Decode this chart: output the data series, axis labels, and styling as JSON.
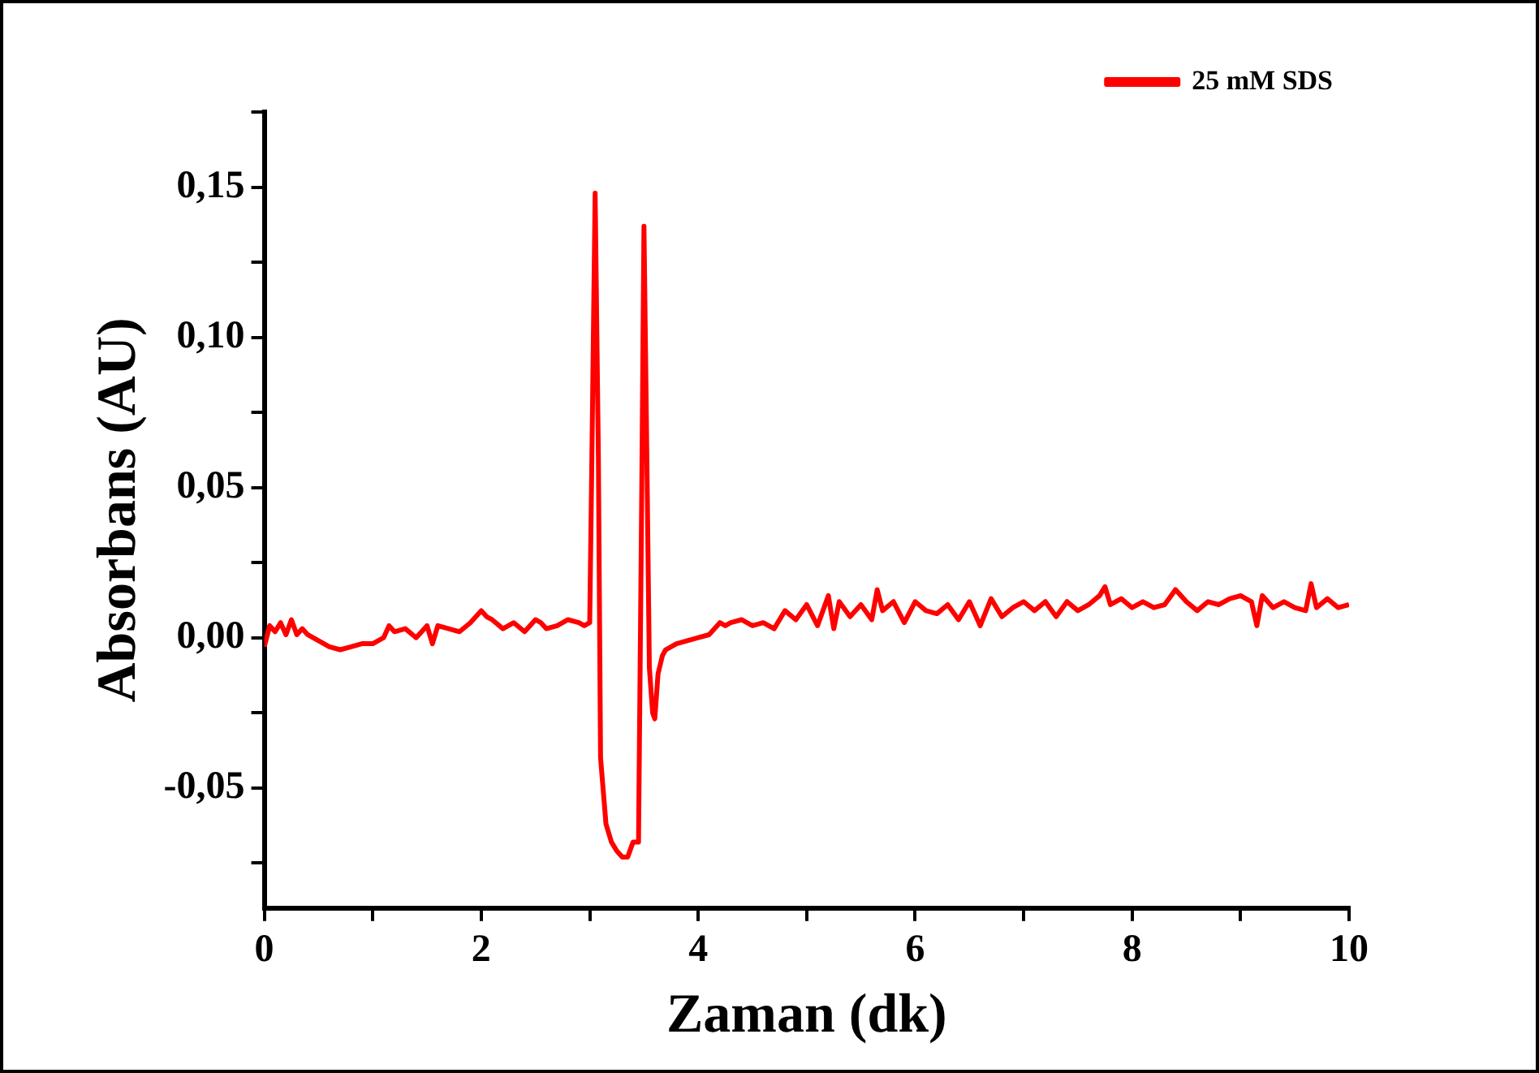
{
  "chart_data": {
    "type": "line",
    "xlabel": "Zaman (dk)",
    "ylabel": "Absorbans (AU)",
    "xlim": [
      0,
      10
    ],
    "ylim": [
      -0.09,
      0.175
    ],
    "xticks": [
      0,
      {
        "value": 1,
        "label": null
      },
      2,
      {
        "value": 3,
        "label": null
      },
      4,
      {
        "value": 5,
        "label": null
      },
      6,
      {
        "value": 7,
        "label": null
      },
      8,
      {
        "value": 9,
        "label": null
      },
      10
    ],
    "yticks": [
      {
        "value": -0.075,
        "label": null
      },
      {
        "value": -0.05,
        "label": "-0,05"
      },
      {
        "value": -0.025,
        "label": null
      },
      {
        "value": 0,
        "label": "0,00"
      },
      {
        "value": 0.025,
        "label": null
      },
      {
        "value": 0.05,
        "label": "0,05"
      },
      {
        "value": 0.075,
        "label": null
      },
      {
        "value": 0.1,
        "label": "0,10"
      },
      {
        "value": 0.125,
        "label": null
      },
      {
        "value": 0.15,
        "label": "0,15"
      },
      {
        "value": 0.175,
        "label": null
      }
    ],
    "grid": false,
    "legend": "top right",
    "marker": "none",
    "line_style": "solid",
    "series": [
      {
        "name": "25 mM SDS",
        "color": "#ff0000",
        "x": [
          0,
          0.05,
          0.1,
          0.15,
          0.2,
          0.25,
          0.3,
          0.35,
          0.4,
          0.45,
          0.5,
          0.6,
          0.7,
          0.8,
          0.9,
          1.0,
          1.1,
          1.15,
          1.2,
          1.3,
          1.4,
          1.5,
          1.55,
          1.6,
          1.7,
          1.8,
          1.9,
          2.0,
          2.05,
          2.1,
          2.2,
          2.3,
          2.4,
          2.5,
          2.55,
          2.6,
          2.7,
          2.8,
          2.9,
          2.95,
          3.0,
          3.02,
          3.05,
          3.08,
          3.1,
          3.15,
          3.2,
          3.25,
          3.3,
          3.35,
          3.4,
          3.45,
          3.48,
          3.5,
          3.52,
          3.55,
          3.58,
          3.6,
          3.63,
          3.67,
          3.7,
          3.8,
          3.9,
          4.0,
          4.1,
          4.2,
          4.25,
          4.3,
          4.4,
          4.5,
          4.6,
          4.7,
          4.8,
          4.9,
          5.0,
          5.1,
          5.2,
          5.25,
          5.3,
          5.4,
          5.5,
          5.6,
          5.65,
          5.7,
          5.8,
          5.9,
          6.0,
          6.1,
          6.2,
          6.3,
          6.4,
          6.5,
          6.6,
          6.7,
          6.8,
          6.9,
          7.0,
          7.1,
          7.2,
          7.3,
          7.4,
          7.5,
          7.6,
          7.7,
          7.75,
          7.8,
          7.9,
          8.0,
          8.1,
          8.2,
          8.3,
          8.4,
          8.5,
          8.6,
          8.7,
          8.8,
          8.9,
          9.0,
          9.1,
          9.15,
          9.2,
          9.3,
          9.4,
          9.5,
          9.6,
          9.65,
          9.7,
          9.8,
          9.9,
          10.0
        ],
        "values": [
          -0.003,
          0.004,
          0.002,
          0.005,
          0.001,
          0.006,
          0.001,
          0.003,
          0.001,
          0.0,
          -0.001,
          -0.003,
          -0.004,
          -0.003,
          -0.002,
          -0.002,
          0.0,
          0.004,
          0.002,
          0.003,
          0.0,
          0.004,
          -0.002,
          0.004,
          0.003,
          0.002,
          0.005,
          0.009,
          0.007,
          0.006,
          0.003,
          0.005,
          0.002,
          0.006,
          0.005,
          0.003,
          0.004,
          0.006,
          0.005,
          0.004,
          0.005,
          0.06,
          0.148,
          0.06,
          -0.04,
          -0.062,
          -0.068,
          -0.071,
          -0.073,
          -0.073,
          -0.068,
          -0.068,
          0.05,
          0.137,
          0.08,
          -0.01,
          -0.025,
          -0.027,
          -0.012,
          -0.006,
          -0.004,
          -0.002,
          -0.001,
          0.0,
          0.001,
          0.005,
          0.004,
          0.005,
          0.006,
          0.004,
          0.005,
          0.003,
          0.009,
          0.006,
          0.011,
          0.004,
          0.014,
          0.003,
          0.012,
          0.007,
          0.011,
          0.006,
          0.016,
          0.009,
          0.012,
          0.005,
          0.012,
          0.009,
          0.008,
          0.011,
          0.006,
          0.012,
          0.004,
          0.013,
          0.007,
          0.01,
          0.012,
          0.009,
          0.012,
          0.007,
          0.012,
          0.009,
          0.011,
          0.014,
          0.017,
          0.011,
          0.013,
          0.01,
          0.012,
          0.01,
          0.011,
          0.016,
          0.012,
          0.009,
          0.012,
          0.011,
          0.013,
          0.014,
          0.012,
          0.004,
          0.014,
          0.01,
          0.012,
          0.01,
          0.009,
          0.018,
          0.01,
          0.013,
          0.01,
          0.011
        ]
      }
    ]
  }
}
